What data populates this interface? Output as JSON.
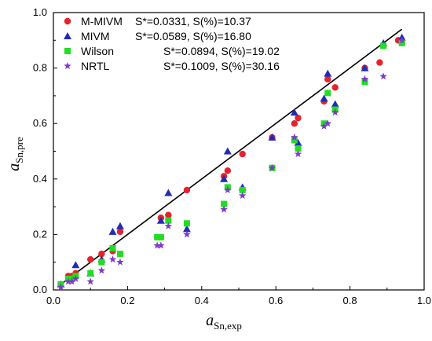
{
  "chart_data": {
    "type": "scatter",
    "title": "",
    "xlabel": {
      "main": "a",
      "sub": "Sn,exp"
    },
    "ylabel": {
      "main": "a",
      "sub": "Sn,pre"
    },
    "xlim": [
      0,
      1.0
    ],
    "ylim": [
      0,
      1.0
    ],
    "xticks": [
      "0.0",
      "0.2",
      "0.4",
      "0.6",
      "0.8",
      "1.0"
    ],
    "yticks": [
      "0.0",
      "0.2",
      "0.4",
      "0.6",
      "0.8",
      "1.0"
    ],
    "grid": false,
    "legend_position": "top-left",
    "fit_line": {
      "x": [
        0.02,
        0.94
      ],
      "y": [
        0.02,
        0.94
      ],
      "color": "#000000"
    },
    "series": [
      {
        "name": "M-MIVM",
        "stat": "S*=0.0331, S(%)=10.37",
        "marker": "circle",
        "color": "#e8212c",
        "x": [
          0.02,
          0.04,
          0.05,
          0.06,
          0.1,
          0.13,
          0.16,
          0.18,
          0.29,
          0.31,
          0.36,
          0.46,
          0.47,
          0.51,
          0.59,
          0.65,
          0.66,
          0.73,
          0.74,
          0.76,
          0.84,
          0.88,
          0.93,
          0.94
        ],
        "y": [
          0.02,
          0.05,
          0.05,
          0.06,
          0.11,
          0.13,
          0.14,
          0.21,
          0.26,
          0.27,
          0.36,
          0.41,
          0.43,
          0.49,
          0.55,
          0.6,
          0.62,
          0.68,
          0.76,
          0.73,
          0.8,
          0.82,
          0.9,
          0.9
        ]
      },
      {
        "name": "MIVM",
        "stat": "S*=0.0589, S(%)=16.80",
        "marker": "triangle",
        "color": "#1f2db5",
        "x": [
          0.02,
          0.04,
          0.06,
          0.1,
          0.13,
          0.16,
          0.18,
          0.29,
          0.31,
          0.36,
          0.46,
          0.47,
          0.51,
          0.59,
          0.65,
          0.66,
          0.73,
          0.74,
          0.76,
          0.84,
          0.89,
          0.94
        ],
        "y": [
          0.02,
          0.04,
          0.09,
          0.06,
          0.11,
          0.21,
          0.23,
          0.25,
          0.35,
          0.22,
          0.4,
          0.5,
          0.37,
          0.55,
          0.64,
          0.53,
          0.69,
          0.78,
          0.67,
          0.8,
          0.89,
          0.91
        ]
      },
      {
        "name": "Wilson",
        "stat": "S*=0.0894, S(%)=19.02",
        "marker": "square",
        "color": "#22dd22",
        "x": [
          0.02,
          0.04,
          0.05,
          0.06,
          0.1,
          0.13,
          0.16,
          0.18,
          0.28,
          0.29,
          0.31,
          0.36,
          0.46,
          0.47,
          0.51,
          0.59,
          0.65,
          0.66,
          0.73,
          0.74,
          0.76,
          0.84,
          0.89,
          0.94
        ],
        "y": [
          0.02,
          0.04,
          0.04,
          0.05,
          0.06,
          0.1,
          0.15,
          0.13,
          0.19,
          0.19,
          0.25,
          0.24,
          0.31,
          0.37,
          0.36,
          0.44,
          0.54,
          0.51,
          0.6,
          0.71,
          0.65,
          0.75,
          0.88,
          0.89
        ]
      },
      {
        "name": "NRTL",
        "stat": "S*=0.1009, S(%)=30.16",
        "marker": "star",
        "color": "#7c3ac8",
        "x": [
          0.02,
          0.04,
          0.05,
          0.06,
          0.1,
          0.13,
          0.16,
          0.18,
          0.28,
          0.29,
          0.31,
          0.36,
          0.46,
          0.47,
          0.51,
          0.59,
          0.65,
          0.66,
          0.73,
          0.74,
          0.76,
          0.84,
          0.89,
          0.94
        ],
        "y": [
          0.01,
          0.03,
          0.03,
          0.04,
          0.03,
          0.07,
          0.11,
          0.1,
          0.16,
          0.16,
          0.23,
          0.2,
          0.29,
          0.36,
          0.34,
          0.44,
          0.55,
          0.49,
          0.59,
          0.6,
          0.64,
          0.76,
          0.77,
          0.9
        ]
      }
    ]
  }
}
